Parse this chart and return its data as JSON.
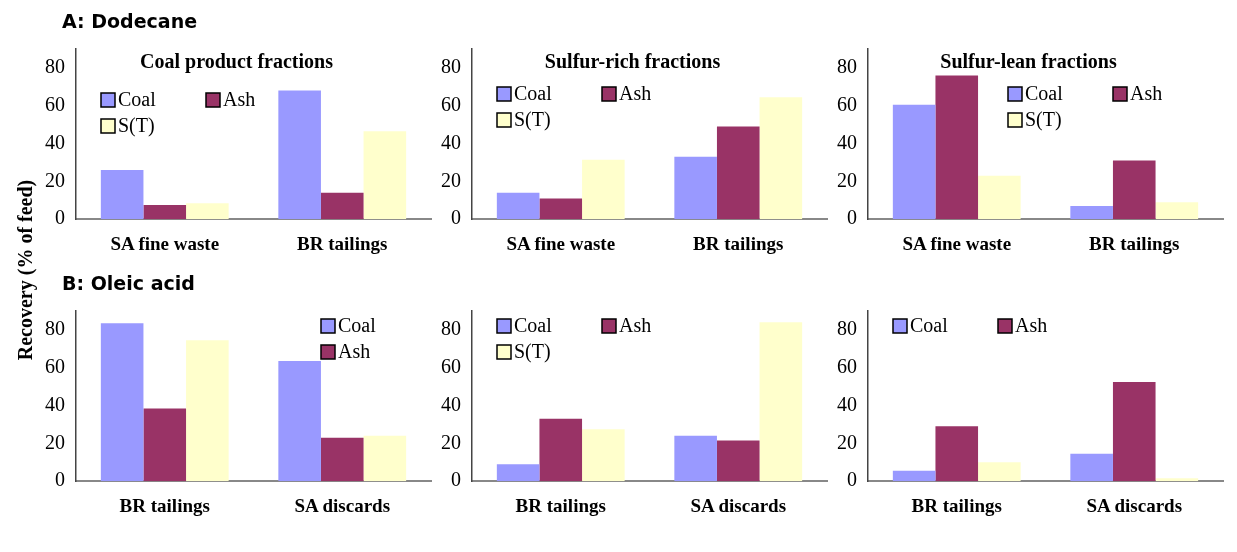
{
  "chart_data": [
    {
      "type": "bar",
      "subtitle": "A: Dodecane",
      "title": "Coal product fractions",
      "ylabel": "Recovery (% of feed)",
      "categories": [
        "SA fine waste",
        "BR tailings"
      ],
      "ylim": [
        0,
        90
      ],
      "yticks": [
        0,
        20,
        40,
        60,
        80
      ],
      "legend": "center left",
      "series": [
        {
          "name": "Coal",
          "color": "#9999ff",
          "values": [
            26,
            68
          ]
        },
        {
          "name": "Ash",
          "color": "#993366",
          "values": [
            7.5,
            14
          ]
        },
        {
          "name": "S(T)",
          "color": "#ffffcc",
          "values": [
            8.5,
            46.5
          ]
        }
      ]
    },
    {
      "type": "bar",
      "title": "Sulfur-rich fractions",
      "categories": [
        "SA fine waste",
        "BR tailings"
      ],
      "ylim": [
        0,
        90
      ],
      "yticks": [
        0,
        20,
        40,
        60,
        80
      ],
      "legend": "top left",
      "series": [
        {
          "name": "Coal",
          "color": "#9999ff",
          "values": [
            14,
            33
          ]
        },
        {
          "name": "Ash",
          "color": "#993366",
          "values": [
            11,
            49
          ]
        },
        {
          "name": "S(T)",
          "color": "#ffffcc",
          "values": [
            31.5,
            64.5
          ]
        }
      ]
    },
    {
      "type": "bar",
      "title": "Sulfur-lean fractions",
      "categories": [
        "SA fine waste",
        "BR tailings"
      ],
      "ylim": [
        0,
        90
      ],
      "yticks": [
        0,
        20,
        40,
        60,
        80
      ],
      "legend": "top right",
      "series": [
        {
          "name": "Coal",
          "color": "#9999ff",
          "values": [
            60.5,
            7
          ]
        },
        {
          "name": "Ash",
          "color": "#993366",
          "values": [
            76,
            31
          ]
        },
        {
          "name": "S(T)",
          "color": "#ffffcc",
          "values": [
            23,
            9
          ]
        }
      ]
    },
    {
      "type": "bar",
      "subtitle": "B: Oleic acid",
      "categories": [
        "BR tailings",
        "SA discards"
      ],
      "ylim": [
        0,
        90
      ],
      "yticks": [
        0,
        20,
        40,
        60,
        80
      ],
      "legend": "top right",
      "series": [
        {
          "name": "Coal",
          "color": "#9999ff",
          "values": [
            83.5,
            63.5
          ]
        },
        {
          "name": "Ash",
          "color": "#993366",
          "values": [
            38.5,
            23
          ]
        },
        {
          "color": "#ffffcc",
          "values": [
            74.5,
            24
          ]
        }
      ]
    },
    {
      "type": "bar",
      "categories": [
        "BR tailings",
        "SA discards"
      ],
      "ylim": [
        0,
        90
      ],
      "yticks": [
        0,
        20,
        40,
        60,
        80
      ],
      "legend": "top left",
      "series": [
        {
          "name": "Coal",
          "color": "#9999ff",
          "values": [
            9,
            24
          ]
        },
        {
          "name": "Ash",
          "color": "#993366",
          "values": [
            33,
            21.5
          ]
        },
        {
          "name": "S(T)",
          "color": "#ffffcc",
          "values": [
            27.5,
            84
          ]
        }
      ]
    },
    {
      "type": "bar",
      "categories": [
        "BR tailings",
        "SA discards"
      ],
      "ylim": [
        0,
        90
      ],
      "yticks": [
        0,
        20,
        40,
        60,
        80
      ],
      "legend": "top left",
      "series": [
        {
          "name": "Coal",
          "color": "#9999ff",
          "values": [
            5.5,
            14.5
          ]
        },
        {
          "name": "Ash",
          "color": "#993366",
          "values": [
            29,
            52.5
          ]
        },
        {
          "color": "#ffffcc",
          "values": [
            10,
            1.5
          ]
        }
      ]
    }
  ]
}
